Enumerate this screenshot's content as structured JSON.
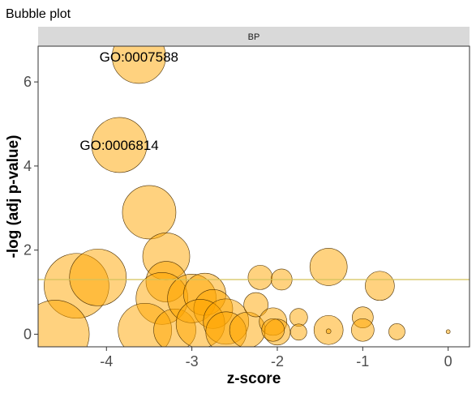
{
  "chart_data": {
    "type": "scatter",
    "title": "Bubble plot",
    "facet": "BP",
    "xlabel": "z-score",
    "ylabel": "-log (adj p-value)",
    "xlim": [
      -4.8,
      0.25
    ],
    "ylim": [
      -0.3,
      6.85
    ],
    "x_ticks": [
      -4,
      -3,
      -2,
      -1,
      0
    ],
    "x_tick_labels": [
      "-4",
      "-3",
      "-2",
      "-1",
      "0"
    ],
    "y_ticks": [
      0,
      2,
      4,
      6
    ],
    "y_tick_labels": [
      "0",
      "2",
      "4",
      "6"
    ],
    "threshold": 1.3,
    "threshold_color": "#d4c25a",
    "bubble_fill": "#ffa500",
    "bubble_stroke": "#4d3000",
    "panel_border": "#333333",
    "strip_fill": "#d9d9d9",
    "grid": false,
    "legend": "none",
    "points": [
      {
        "x": -3.62,
        "y": 6.6,
        "size": 33,
        "label": "GO:0007588"
      },
      {
        "x": -3.85,
        "y": 4.5,
        "size": 34,
        "label": "GO:0006814"
      },
      {
        "x": -3.5,
        "y": 2.9,
        "size": 33
      },
      {
        "x": -4.35,
        "y": 1.15,
        "size": 40
      },
      {
        "x": -4.1,
        "y": 1.35,
        "size": 35
      },
      {
        "x": -3.3,
        "y": 1.85,
        "size": 29
      },
      {
        "x": -3.3,
        "y": 1.25,
        "size": 25
      },
      {
        "x": -3.35,
        "y": 0.85,
        "size": 32
      },
      {
        "x": -4.6,
        "y": 0.0,
        "size": 42
      },
      {
        "x": -3.55,
        "y": 0.1,
        "size": 33
      },
      {
        "x": -3.2,
        "y": 0.1,
        "size": 26
      },
      {
        "x": -3.0,
        "y": 0.85,
        "size": 30
      },
      {
        "x": -2.85,
        "y": 0.95,
        "size": 26
      },
      {
        "x": -2.75,
        "y": 0.6,
        "size": 24
      },
      {
        "x": -2.9,
        "y": 0.25,
        "size": 30
      },
      {
        "x": -2.6,
        "y": 0.3,
        "size": 28
      },
      {
        "x": -2.6,
        "y": 0.05,
        "size": 25
      },
      {
        "x": -2.35,
        "y": 0.1,
        "size": 22
      },
      {
        "x": -2.2,
        "y": 1.35,
        "size": 15
      },
      {
        "x": -2.25,
        "y": 0.7,
        "size": 15
      },
      {
        "x": -2.05,
        "y": 0.3,
        "size": 17
      },
      {
        "x": -2.0,
        "y": 0.05,
        "size": 16
      },
      {
        "x": -1.95,
        "y": 1.3,
        "size": 13
      },
      {
        "x": -2.05,
        "y": 0.1,
        "size": 14
      },
      {
        "x": -1.75,
        "y": 0.4,
        "size": 11
      },
      {
        "x": -1.75,
        "y": 0.05,
        "size": 10
      },
      {
        "x": -1.4,
        "y": 1.6,
        "size": 23
      },
      {
        "x": -1.4,
        "y": 0.1,
        "size": 18
      },
      {
        "x": -1.4,
        "y": 0.07,
        "size": 3
      },
      {
        "x": -1.0,
        "y": 0.4,
        "size": 13
      },
      {
        "x": -1.0,
        "y": 0.1,
        "size": 14
      },
      {
        "x": -0.8,
        "y": 1.15,
        "size": 18
      },
      {
        "x": -0.6,
        "y": 0.06,
        "size": 10
      },
      {
        "x": 0.0,
        "y": 0.06,
        "size": 2.5
      }
    ]
  }
}
